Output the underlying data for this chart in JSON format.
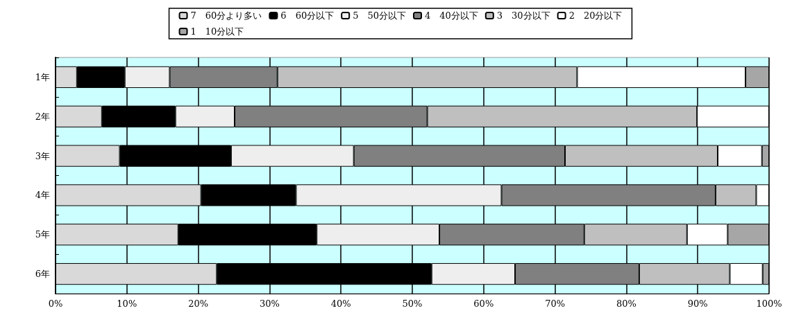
{
  "chart_data": {
    "type": "bar",
    "orientation": "horizontal",
    "stacked": true,
    "categories": [
      "1年",
      "2年",
      "3年",
      "4年",
      "5年",
      "6年"
    ],
    "series": [
      {
        "name": "7　60分より多い",
        "color": "#d9d9d9",
        "values": [
          3.0,
          6.5,
          9.0,
          20.4,
          17.2,
          22.6
        ]
      },
      {
        "name": "6　60分以下",
        "color": "#000000",
        "values": [
          6.7,
          10.3,
          15.6,
          13.3,
          19.4,
          30.1
        ]
      },
      {
        "name": "5　50分以下",
        "color": "#eeeeee",
        "values": [
          6.3,
          8.3,
          17.2,
          28.8,
          17.2,
          11.7
        ]
      },
      {
        "name": "4　40分以下",
        "color": "#808080",
        "values": [
          15.1,
          27.0,
          29.6,
          30.0,
          20.3,
          17.4
        ]
      },
      {
        "name": "3　30分以下",
        "color": "#bfbfbf",
        "values": [
          42.0,
          37.8,
          21.4,
          5.7,
          14.4,
          12.7
        ]
      },
      {
        "name": "2　20分以下",
        "color": "#ffffff",
        "values": [
          23.6,
          10.1,
          6.2,
          1.8,
          5.7,
          4.6
        ]
      },
      {
        "name": "1　10分以下",
        "color": "#a6a6a6",
        "values": [
          3.3,
          0,
          1.0,
          0,
          5.8,
          0.9
        ]
      }
    ],
    "xlim": [
      0,
      100
    ],
    "xticks": [
      {
        "value": 0,
        "label": "0%"
      },
      {
        "value": 10,
        "label": "10%"
      },
      {
        "value": 20,
        "label": "20%"
      },
      {
        "value": 30,
        "label": "30%"
      },
      {
        "value": 40,
        "label": "40%"
      },
      {
        "value": 50,
        "label": "50%"
      },
      {
        "value": 60,
        "label": "60%"
      },
      {
        "value": 70,
        "label": "70%"
      },
      {
        "value": 80,
        "label": "80%"
      },
      {
        "value": 90,
        "label": "90%"
      },
      {
        "value": 100,
        "label": "100%"
      }
    ],
    "grid": "x",
    "legend": "top"
  }
}
